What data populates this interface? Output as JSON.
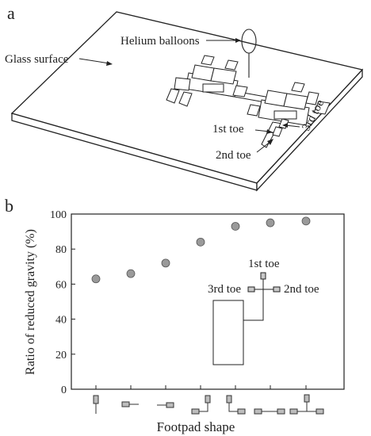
{
  "panel_a": {
    "letter": "a",
    "labels": {
      "helium": "Helium balloons",
      "glass": "Glass surface",
      "toe1": "1st toe",
      "toe2": "2nd toe",
      "toe3": "3rd toe"
    }
  },
  "panel_b": {
    "letter": "b",
    "inset": {
      "toe1": "1st toe",
      "toe2": "2nd toe",
      "toe3": "3rd toe"
    }
  },
  "chart_data": {
    "type": "scatter",
    "title": "",
    "xlabel": "Footpad shape",
    "ylabel": "Ratio of reduced gravity (%)",
    "ylim": [
      0,
      100
    ],
    "yticks": [
      0,
      20,
      40,
      60,
      80,
      100
    ],
    "grid": false,
    "marker_color": "#9a9a9a",
    "x": [
      1,
      2,
      3,
      4,
      5,
      6,
      7
    ],
    "values": [
      63,
      66,
      72,
      84,
      93,
      95,
      96
    ]
  }
}
